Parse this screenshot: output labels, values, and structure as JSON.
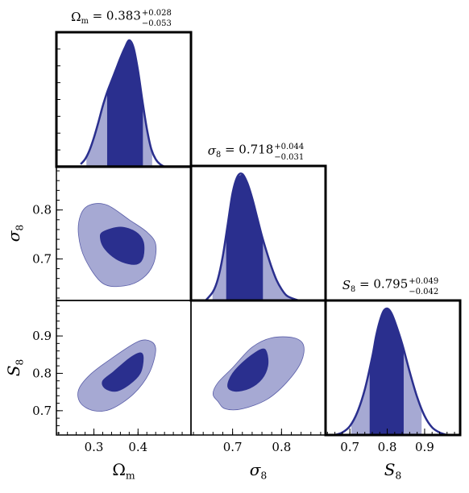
{
  "chart_data": {
    "type": "corner",
    "parameters": [
      {
        "key": "omega_m",
        "label": "Ω",
        "label_sub": "m",
        "title_main": "Ω",
        "title_sub": "m",
        "title_value": " = 0.383",
        "title_plus": "+0.028",
        "title_minus": "−0.053",
        "best": 0.383,
        "err_plus": 0.028,
        "err_minus": 0.053,
        "range": [
          0.215,
          0.52
        ],
        "ticks": [
          0.3,
          0.4
        ],
        "tick_labels": [
          "0.3",
          "0.4"
        ]
      },
      {
        "key": "sigma_8",
        "label": "σ",
        "label_sub": "8",
        "title_main": "σ",
        "title_sub": "8",
        "title_value": " = 0.718",
        "title_plus": "+0.044",
        "title_minus": "−0.031",
        "best": 0.718,
        "err_plus": 0.044,
        "err_minus": 0.031,
        "range": [
          0.615,
          0.89
        ],
        "ticks": [
          0.7,
          0.8
        ],
        "tick_labels": [
          "0.7",
          "0.8"
        ]
      },
      {
        "key": "s_8",
        "label": "S",
        "label_sub": "8",
        "title_main": "S",
        "title_sub": "8",
        "title_value": " = 0.795",
        "title_plus": "+0.049",
        "title_minus": "−0.042",
        "best": 0.795,
        "err_plus": 0.049,
        "err_minus": 0.042,
        "range": [
          0.635,
          0.995
        ],
        "ticks": [
          0.7,
          0.8,
          0.9
        ],
        "tick_labels": [
          "0.7",
          "0.8",
          "0.9"
        ]
      }
    ],
    "posterior_1d": [
      {
        "param": "omega_m",
        "x": [
          0.27,
          0.28,
          0.29,
          0.3,
          0.31,
          0.32,
          0.33,
          0.34,
          0.35,
          0.36,
          0.37,
          0.38,
          0.39,
          0.4,
          0.41,
          0.42,
          0.43,
          0.44,
          0.45,
          0.46
        ],
        "density": [
          0.02,
          0.06,
          0.13,
          0.23,
          0.35,
          0.48,
          0.59,
          0.68,
          0.77,
          0.86,
          0.94,
          1.0,
          0.94,
          0.76,
          0.52,
          0.3,
          0.14,
          0.06,
          0.02,
          0.0
        ],
        "interval_68": [
          0.33,
          0.411
        ],
        "interval_95": [
          0.283,
          0.432
        ]
      },
      {
        "param": "sigma_8",
        "x": [
          0.645,
          0.66,
          0.67,
          0.68,
          0.69,
          0.7,
          0.71,
          0.72,
          0.73,
          0.74,
          0.75,
          0.76,
          0.77,
          0.78,
          0.79,
          0.8,
          0.81,
          0.82,
          0.835
        ],
        "density": [
          0.0,
          0.07,
          0.17,
          0.35,
          0.6,
          0.85,
          0.98,
          1.0,
          0.93,
          0.81,
          0.66,
          0.51,
          0.38,
          0.26,
          0.16,
          0.09,
          0.04,
          0.02,
          0.0
        ],
        "interval_68": [
          0.687,
          0.762
        ],
        "interval_95": [
          0.659,
          0.824
        ]
      },
      {
        "param": "s_8",
        "x": [
          0.66,
          0.68,
          0.7,
          0.72,
          0.74,
          0.76,
          0.77,
          0.78,
          0.79,
          0.8,
          0.81,
          0.82,
          0.84,
          0.86,
          0.88,
          0.9,
          0.92,
          0.94,
          0.96
        ],
        "density": [
          0.0,
          0.02,
          0.07,
          0.18,
          0.36,
          0.62,
          0.78,
          0.9,
          0.98,
          1.0,
          0.97,
          0.9,
          0.72,
          0.5,
          0.3,
          0.15,
          0.06,
          0.02,
          0.0
        ],
        "interval_68": [
          0.753,
          0.844
        ],
        "interval_95": [
          0.704,
          0.892
        ]
      }
    ],
    "contours_2d": [
      {
        "x_param": "omega_m",
        "y_param": "sigma_8",
        "level_95": [
          [
            0.27,
            0.79
          ],
          [
            0.29,
            0.81
          ],
          [
            0.33,
            0.81
          ],
          [
            0.38,
            0.78
          ],
          [
            0.42,
            0.755
          ],
          [
            0.44,
            0.73
          ],
          [
            0.435,
            0.69
          ],
          [
            0.41,
            0.66
          ],
          [
            0.37,
            0.645
          ],
          [
            0.32,
            0.65
          ],
          [
            0.28,
            0.7
          ],
          [
            0.265,
            0.75
          ]
        ],
        "level_68": [
          [
            0.32,
            0.755
          ],
          [
            0.36,
            0.765
          ],
          [
            0.395,
            0.755
          ],
          [
            0.412,
            0.735
          ],
          [
            0.412,
            0.705
          ],
          [
            0.4,
            0.69
          ],
          [
            0.378,
            0.69
          ],
          [
            0.35,
            0.7
          ],
          [
            0.325,
            0.72
          ],
          [
            0.315,
            0.74
          ]
        ]
      },
      {
        "x_param": "omega_m",
        "y_param": "s_8",
        "level_95": [
          [
            0.3,
            0.7
          ],
          [
            0.27,
            0.72
          ],
          [
            0.265,
            0.755
          ],
          [
            0.29,
            0.795
          ],
          [
            0.34,
            0.84
          ],
          [
            0.4,
            0.885
          ],
          [
            0.43,
            0.885
          ],
          [
            0.44,
            0.86
          ],
          [
            0.425,
            0.8
          ],
          [
            0.39,
            0.745
          ],
          [
            0.34,
            0.705
          ]
        ],
        "level_68": [
          [
            0.325,
            0.76
          ],
          [
            0.32,
            0.78
          ],
          [
            0.345,
            0.805
          ],
          [
            0.38,
            0.84
          ],
          [
            0.405,
            0.855
          ],
          [
            0.412,
            0.84
          ],
          [
            0.405,
            0.8
          ],
          [
            0.38,
            0.77
          ],
          [
            0.35,
            0.752
          ]
        ]
      },
      {
        "x_param": "sigma_8",
        "y_param": "s_8",
        "level_95": [
          [
            0.67,
            0.725
          ],
          [
            0.66,
            0.745
          ],
          [
            0.67,
            0.775
          ],
          [
            0.7,
            0.815
          ],
          [
            0.74,
            0.87
          ],
          [
            0.78,
            0.895
          ],
          [
            0.825,
            0.895
          ],
          [
            0.845,
            0.875
          ],
          [
            0.84,
            0.83
          ],
          [
            0.81,
            0.775
          ],
          [
            0.77,
            0.73
          ],
          [
            0.72,
            0.705
          ],
          [
            0.685,
            0.705
          ]
        ],
        "level_68": [
          [
            0.69,
            0.765
          ],
          [
            0.7,
            0.8
          ],
          [
            0.73,
            0.84
          ],
          [
            0.76,
            0.865
          ],
          [
            0.77,
            0.855
          ],
          [
            0.772,
            0.82
          ],
          [
            0.76,
            0.785
          ],
          [
            0.735,
            0.76
          ],
          [
            0.705,
            0.752
          ]
        ]
      }
    ],
    "colors": {
      "dark": "#2a2f8e",
      "light": "#a6a9d3",
      "outline": "#2a2f8e",
      "frame": "#000000"
    },
    "grid": false,
    "legend": "none"
  }
}
